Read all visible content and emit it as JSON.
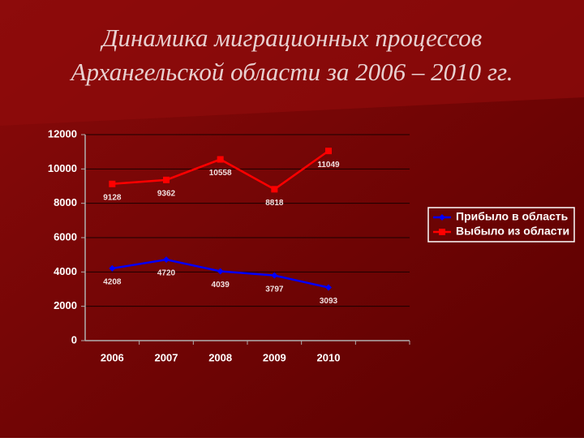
{
  "chart_data": {
    "type": "line",
    "title": [
      "Динамика миграционных процессов",
      "Архангельской области за 2006 – 2010 гг."
    ],
    "categories": [
      "2006",
      "2007",
      "2008",
      "2009",
      "2010",
      null
    ],
    "series": [
      {
        "name": "Прибыло в область",
        "color": "#0000ff",
        "marker": "diamond",
        "values": [
          4208,
          4720,
          4039,
          3797,
          3093,
          null
        ]
      },
      {
        "name": "Выбыло из области",
        "color": "#ff0000",
        "marker": "square",
        "values": [
          9128,
          9362,
          10558,
          8818,
          11049,
          null
        ]
      }
    ],
    "ylim": [
      0,
      12000
    ],
    "yticks": [
      0,
      2000,
      4000,
      6000,
      8000,
      10000,
      12000
    ],
    "grid": true,
    "legend": "right"
  }
}
